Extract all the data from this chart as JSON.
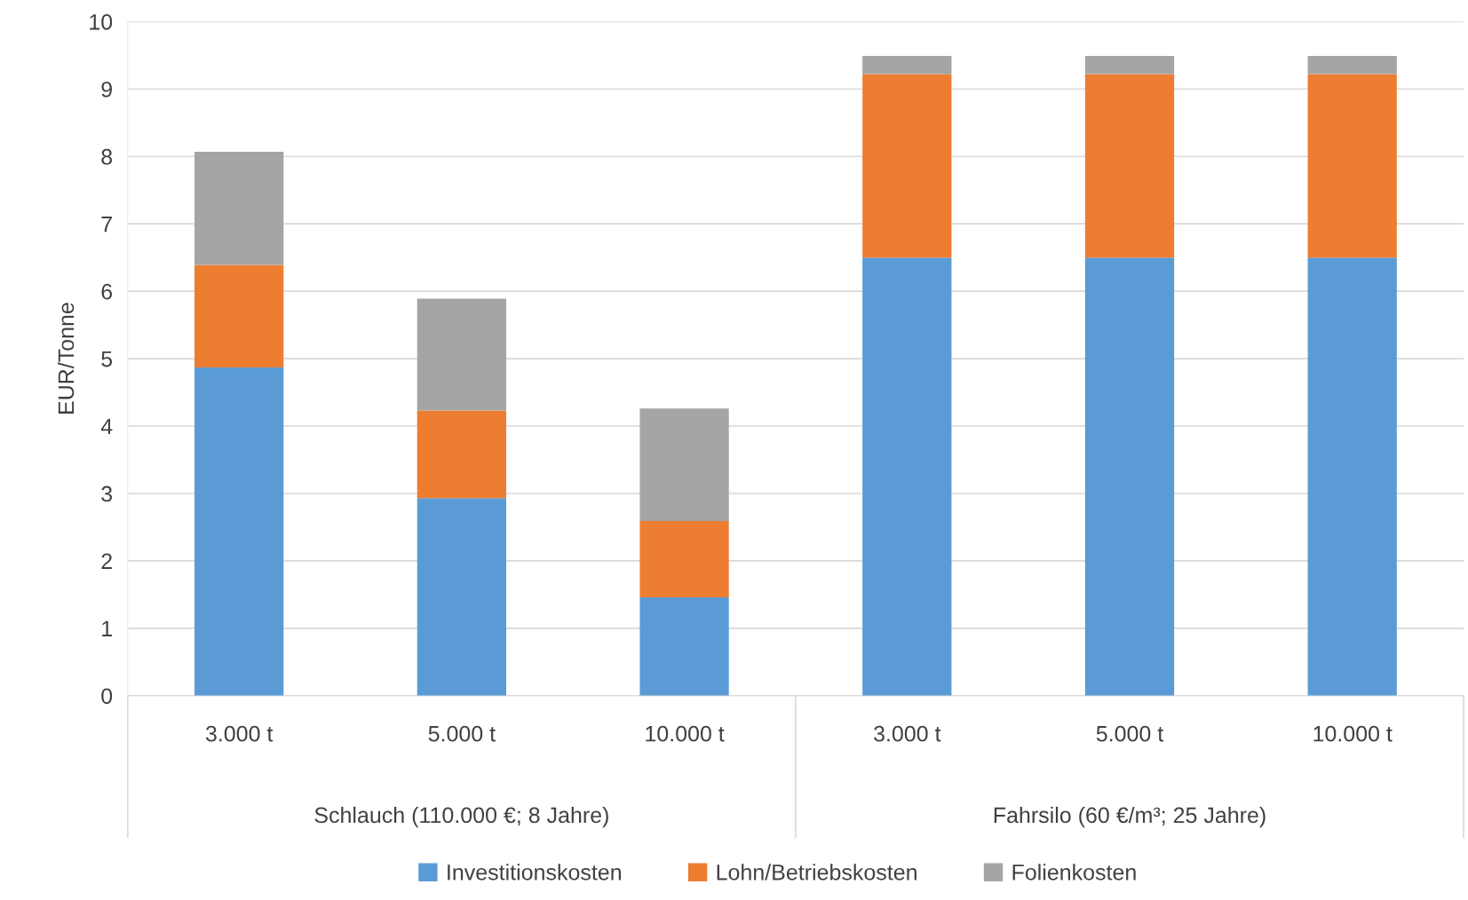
{
  "chart_data": {
    "type": "bar",
    "stacked": true,
    "ylabel": "EUR/Tonne",
    "categories": [
      "3.000 t",
      "5.000 t",
      "10.000 t",
      "3.000 t",
      "5.000 t",
      "10.000 t"
    ],
    "series": [
      {
        "name": "Investitionskosten",
        "color": "#5b9bd5",
        "values": [
          4.87,
          2.93,
          1.46,
          6.5,
          6.5,
          6.5
        ]
      },
      {
        "name": "Lohn/Betriebskosten",
        "color": "#ed7d31",
        "values": [
          1.52,
          1.3,
          1.13,
          2.72,
          2.72,
          2.72
        ]
      },
      {
        "name": "Folienkosten",
        "color": "#a5a5a5",
        "values": [
          1.68,
          1.66,
          1.67,
          0.27,
          0.27,
          0.27
        ]
      }
    ],
    "annotations": [
      "Schlauch (110.000 €; 8 Jahre)",
      "Fahrsilo (60 €/m³; 25 Jahre)"
    ],
    "ylim": [
      0,
      10
    ],
    "yticks": [
      0,
      1,
      2,
      3,
      4,
      5,
      6,
      7,
      8,
      9,
      10
    ],
    "grid": "y",
    "legend": "bottom"
  }
}
